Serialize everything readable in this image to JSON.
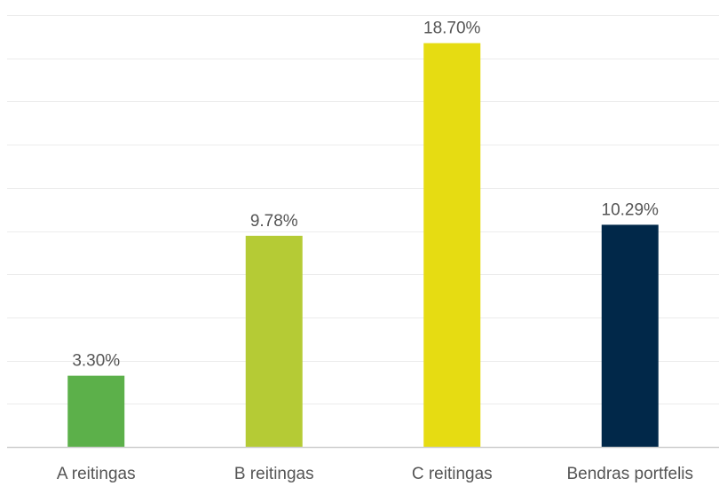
{
  "chart_data": {
    "type": "bar",
    "categories": [
      "A reitingas",
      "B reitingas",
      "C reitingas",
      "Bendras portfelis"
    ],
    "values": [
      3.3,
      9.78,
      18.7,
      10.29
    ],
    "data_labels": [
      "3.30%",
      "9.78%",
      "18.70%",
      "10.29%"
    ],
    "colors": [
      "#5cb04a",
      "#b5cb35",
      "#e6dc12",
      "#012849"
    ],
    "title": "",
    "xlabel": "",
    "ylabel": "",
    "ylim": [
      0,
      20
    ],
    "grid": true,
    "legend": "none"
  }
}
